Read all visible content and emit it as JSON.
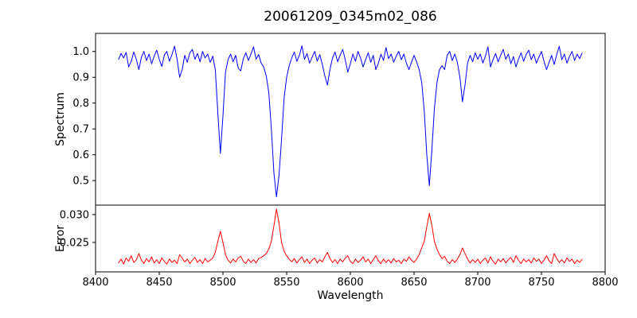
{
  "figure": {
    "background": "#ffffff",
    "axis_color": "#000000"
  },
  "chart_data": [
    {
      "type": "line",
      "name": "spectrum",
      "title": "20061209_0345m02_086",
      "ylabel": "Spectrum",
      "x_start": 8418,
      "x_step": 2,
      "xlim": [
        8400,
        8800
      ],
      "ylim": [
        0.405,
        1.07
      ],
      "yticks": [
        0.5,
        0.6,
        0.7,
        0.8,
        0.9,
        1.0
      ],
      "ytick_labels": [
        "0.5",
        "0.6",
        "0.7",
        "0.8",
        "0.9",
        "1.0"
      ],
      "grid": false,
      "series": [
        {
          "name": "spectrum",
          "color": "#0000ff",
          "values": [
            0.968,
            0.992,
            0.975,
            0.996,
            0.94,
            0.962,
            0.998,
            0.97,
            0.93,
            0.978,
            1.0,
            0.965,
            0.99,
            0.952,
            0.982,
            1.005,
            0.97,
            0.942,
            0.986,
            1.0,
            0.962,
            0.988,
            1.02,
            0.97,
            0.9,
            0.93,
            0.985,
            0.958,
            0.995,
            1.008,
            0.97,
            0.992,
            0.96,
            1.0,
            0.975,
            0.99,
            0.958,
            0.982,
            0.93,
            0.76,
            0.605,
            0.75,
            0.92,
            0.968,
            0.99,
            0.96,
            0.985,
            0.935,
            0.925,
            0.972,
            0.995,
            0.965,
            0.99,
            1.018,
            0.97,
            0.988,
            0.955,
            0.94,
            0.905,
            0.84,
            0.7,
            0.53,
            0.437,
            0.52,
            0.66,
            0.82,
            0.9,
            0.945,
            0.975,
            0.998,
            0.962,
            0.985,
            1.022,
            0.97,
            0.992,
            0.955,
            0.978,
            1.0,
            0.962,
            0.988,
            0.95,
            0.905,
            0.87,
            0.93,
            0.975,
            0.998,
            0.96,
            0.985,
            1.008,
            0.968,
            0.92,
            0.952,
            0.99,
            0.962,
            1.0,
            0.975,
            0.94,
            0.968,
            0.995,
            0.958,
            0.985,
            0.93,
            0.955,
            0.99,
            0.965,
            1.015,
            0.972,
            0.99,
            0.958,
            0.982,
            1.0,
            0.968,
            0.99,
            0.955,
            0.93,
            0.958,
            0.985,
            0.96,
            0.93,
            0.88,
            0.77,
            0.6,
            0.48,
            0.62,
            0.78,
            0.88,
            0.93,
            0.945,
            0.93,
            0.985,
            1.0,
            0.965,
            0.99,
            0.958,
            0.9,
            0.805,
            0.87,
            0.955,
            0.985,
            0.96,
            0.995,
            0.97,
            0.99,
            0.955,
            0.982,
            1.018,
            0.94,
            0.968,
            0.992,
            0.96,
            0.985,
            1.008,
            0.97,
            0.99,
            0.952,
            0.98,
            0.94,
            0.97,
            0.995,
            0.962,
            0.988,
            1.005,
            0.968,
            0.99,
            0.955,
            0.978,
            1.0,
            0.962,
            0.93,
            0.958,
            0.985,
            0.95,
            0.988,
            1.02,
            0.968,
            0.99,
            0.955,
            0.98,
            1.0,
            0.965,
            0.99,
            0.972,
            0.995
          ]
        }
      ]
    },
    {
      "type": "line",
      "name": "error",
      "ylabel": "Error",
      "xlabel": "Wavelength",
      "x_start": 8418,
      "x_step": 2,
      "xlim": [
        8400,
        8800
      ],
      "ylim": [
        0.0197,
        0.0317
      ],
      "yticks": [
        0.025,
        0.03
      ],
      "ytick_labels": [
        "0.025",
        "0.030"
      ],
      "xticks": [
        8400,
        8450,
        8500,
        8550,
        8600,
        8650,
        8700,
        8750,
        8800
      ],
      "xtick_labels": [
        "8400",
        "8450",
        "8500",
        "8550",
        "8600",
        "8650",
        "8700",
        "8750",
        "8800"
      ],
      "grid": false,
      "series": [
        {
          "name": "error",
          "color": "#ff0000",
          "values": [
            0.0213,
            0.022,
            0.0211,
            0.0222,
            0.0216,
            0.0226,
            0.0214,
            0.0219,
            0.023,
            0.0218,
            0.0212,
            0.0221,
            0.0215,
            0.0224,
            0.0213,
            0.0219,
            0.0212,
            0.0222,
            0.0216,
            0.0211,
            0.022,
            0.0214,
            0.0218,
            0.0212,
            0.0228,
            0.0222,
            0.0215,
            0.022,
            0.0212,
            0.0218,
            0.0223,
            0.0214,
            0.0219,
            0.0212,
            0.0221,
            0.0215,
            0.0218,
            0.0222,
            0.0232,
            0.0252,
            0.027,
            0.025,
            0.0228,
            0.0218,
            0.0213,
            0.022,
            0.0215,
            0.0222,
            0.0225,
            0.0216,
            0.0212,
            0.022,
            0.0214,
            0.0219,
            0.0213,
            0.0221,
            0.0223,
            0.0226,
            0.023,
            0.0238,
            0.0252,
            0.028,
            0.031,
            0.0285,
            0.025,
            0.0234,
            0.0226,
            0.022,
            0.0215,
            0.0221,
            0.0213,
            0.0219,
            0.0224,
            0.0214,
            0.022,
            0.0212,
            0.0218,
            0.0222,
            0.0213,
            0.0219,
            0.0215,
            0.0224,
            0.0232,
            0.0221,
            0.0214,
            0.0219,
            0.0212,
            0.022,
            0.0215,
            0.0222,
            0.0226,
            0.0216,
            0.0212,
            0.022,
            0.0214,
            0.0218,
            0.0224,
            0.0215,
            0.022,
            0.0212,
            0.0219,
            0.0226,
            0.0217,
            0.0212,
            0.022,
            0.0214,
            0.0219,
            0.0213,
            0.0221,
            0.0215,
            0.0218,
            0.0212,
            0.022,
            0.0216,
            0.0224,
            0.0218,
            0.0214,
            0.022,
            0.0228,
            0.024,
            0.0252,
            0.0278,
            0.0302,
            0.028,
            0.0252,
            0.0238,
            0.0228,
            0.0221,
            0.0225,
            0.0216,
            0.0212,
            0.0219,
            0.0214,
            0.022,
            0.0228,
            0.024,
            0.023,
            0.022,
            0.0213,
            0.0219,
            0.0214,
            0.022,
            0.0212,
            0.0218,
            0.0222,
            0.0213,
            0.0224,
            0.0216,
            0.0211,
            0.022,
            0.0215,
            0.0221,
            0.0213,
            0.0219,
            0.0223,
            0.0214,
            0.0226,
            0.0218,
            0.0212,
            0.022,
            0.0215,
            0.0219,
            0.0213,
            0.0222,
            0.0216,
            0.022,
            0.0212,
            0.0218,
            0.0226,
            0.0217,
            0.0212,
            0.023,
            0.0221,
            0.0214,
            0.0219,
            0.0213,
            0.0222,
            0.0216,
            0.022,
            0.0212,
            0.0218,
            0.0214,
            0.022
          ]
        }
      ]
    }
  ]
}
